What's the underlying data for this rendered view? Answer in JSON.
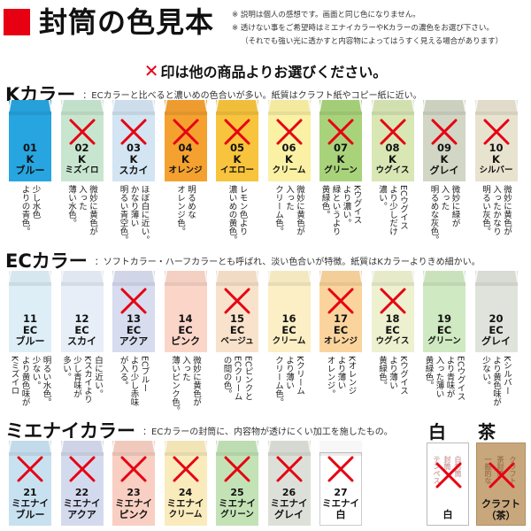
{
  "header": {
    "title": "封筒の色見本",
    "notes": [
      "※ 説明は個人の感想です。画面と同じ色になりません。",
      "※ 透けない事をご希望時はミエナイカラーやKカラーの濃色をお選び下さい。",
      "（それでも強い光に透かすと内容物によってはうすく見える場合があります）"
    ]
  },
  "hint": {
    "mark": "✕",
    "text": "印は他の商品よりお選びください。"
  },
  "colors": {
    "accent": "#e60012"
  },
  "sections": {
    "k": {
      "name": "Kカラー",
      "desc": "：ECカラーと比べると濃いめの色合いが多い。紙質はクラフト紙やコピー紙に近い。",
      "items": [
        {
          "code": "01",
          "prefix": "K",
          "label": "ブルー",
          "color": "#27a5e0",
          "crossed": false,
          "desc": [
            "少し水色",
            "よりの青色。"
          ]
        },
        {
          "code": "02",
          "prefix": "K",
          "label": "ミズイロ",
          "color": "#c8e6cf",
          "crossed": true,
          "desc": [
            "微妙に黄色が",
            "入った",
            "薄い水色。"
          ]
        },
        {
          "code": "03",
          "prefix": "K",
          "label": "スカイ",
          "color": "#d3e4f2",
          "crossed": true,
          "desc": [
            "ほぼ白に近い。",
            "かなり薄い",
            "明るい青空色。"
          ]
        },
        {
          "code": "04",
          "prefix": "K",
          "label": "オレンジ",
          "color": "#f5a130",
          "crossed": true,
          "desc": [
            "明るめな",
            "オレンジ色。"
          ]
        },
        {
          "code": "05",
          "prefix": "K",
          "label": "イエロー",
          "color": "#f8c43d",
          "crossed": true,
          "desc": [
            "レモン色より",
            "濃いめの黄色。"
          ]
        },
        {
          "code": "06",
          "prefix": "K",
          "label": "クリーム",
          "color": "#faf1a4",
          "crossed": true,
          "desc": [
            "微妙に黄色が",
            "入った",
            "クリーム色。"
          ]
        },
        {
          "code": "07",
          "prefix": "K",
          "label": "グリーン",
          "color": "#a9d37b",
          "crossed": true,
          "desc": [
            "Kウグイス",
            "より濃い。",
            "緑というより",
            "黄緑色。"
          ]
        },
        {
          "code": "08",
          "prefix": "K",
          "label": "ウグイス",
          "color": "#d8e7b4",
          "crossed": true,
          "desc": [
            "ECウグイス",
            "より少しだけ",
            "濃い。"
          ]
        },
        {
          "code": "09",
          "prefix": "K",
          "label": "グレイ",
          "color": "#d2d6c5",
          "crossed": true,
          "desc": [
            "微妙に緑が",
            "入った",
            "明るめな灰色。"
          ]
        },
        {
          "code": "10",
          "prefix": "K",
          "label": "シルバー",
          "color": "#e8e3cf",
          "crossed": true,
          "desc": [
            "微妙に黄色が",
            "入ったかなり",
            "明るい灰色。"
          ]
        }
      ]
    },
    "ec": {
      "name": "ECカラー",
      "desc": "：ソフトカラー・ハーフカラーとも呼ばれ、淡い色合いが特徴。紙質はKカラーよりきめ細かい。",
      "items": [
        {
          "code": "11",
          "prefix": "EC",
          "label": "ブルー",
          "color": "#ddeef6",
          "crossed": false,
          "desc": [
            "明るい水色。",
            "少ない。",
            "より黄色味が",
            "Kミズイロ"
          ]
        },
        {
          "code": "12",
          "prefix": "EC",
          "label": "スカイ",
          "color": "#e7eef7",
          "crossed": false,
          "desc": [
            "白に近い。",
            "Kスカイより",
            "少し青味が",
            "多い。"
          ]
        },
        {
          "code": "13",
          "prefix": "EC",
          "label": "アクア",
          "color": "#d7dcef",
          "crossed": true,
          "desc": [
            "ECブルー",
            "より少し赤味",
            "が入る。"
          ]
        },
        {
          "code": "14",
          "prefix": "EC",
          "label": "ピンク",
          "color": "#fbd6c8",
          "crossed": false,
          "desc": [
            "微妙に黄色が",
            "入った",
            "薄いピンク色。"
          ]
        },
        {
          "code": "15",
          "prefix": "EC",
          "label": "ベージュ",
          "color": "#f9e2cb",
          "crossed": true,
          "desc": [
            "ECピンクと",
            "ECクリーム",
            "の間の色。"
          ]
        },
        {
          "code": "16",
          "prefix": "EC",
          "label": "クリーム",
          "color": "#fcefc5",
          "crossed": false,
          "desc": [
            "Kクリーム",
            "より薄い",
            "クリーム色。"
          ]
        },
        {
          "code": "17",
          "prefix": "EC",
          "label": "オレンジ",
          "color": "#fbd49d",
          "crossed": true,
          "desc": [
            "Kオレンジ",
            "より薄い",
            "オレンジ。"
          ]
        },
        {
          "code": "18",
          "prefix": "EC",
          "label": "ウグイス",
          "color": "#eef1cf",
          "crossed": true,
          "desc": [
            "Kウグイス",
            "より薄い",
            "黄緑色。"
          ]
        },
        {
          "code": "19",
          "prefix": "EC",
          "label": "グリーン",
          "color": "#cfe9c2",
          "crossed": false,
          "desc": [
            "ECウグイス",
            "より青味が",
            "入った薄い",
            "黄緑色。"
          ]
        },
        {
          "code": "20",
          "prefix": "EC",
          "label": "グレイ",
          "color": "#e0e3db",
          "crossed": false,
          "desc": [
            "Kシルバー",
            "より黄色味が",
            "少ない。"
          ]
        }
      ]
    },
    "m": {
      "name": "ミエナイカラー",
      "desc": "：ECカラーの封筒に、内容物が透けにくい加工を施したもの。",
      "items": [
        {
          "code": "21",
          "prefix": "ミエナイ",
          "label": "ブルー",
          "color": "#c8e1f1",
          "crossed": true
        },
        {
          "code": "22",
          "prefix": "ミエナイ",
          "label": "アクア",
          "color": "#d4daee",
          "crossed": true
        },
        {
          "code": "23",
          "prefix": "ミエナイ",
          "label": "ピンク",
          "color": "#f8cfc2",
          "crossed": true
        },
        {
          "code": "24",
          "prefix": "ミエナイ",
          "label": "クリーム",
          "color": "#faebbc",
          "crossed": true
        },
        {
          "code": "25",
          "prefix": "ミエナイ",
          "label": "グリーン",
          "color": "#c3e3b6",
          "crossed": true
        },
        {
          "code": "26",
          "prefix": "ミエナイ",
          "label": "グレイ",
          "color": "#dde0d8",
          "crossed": true
        },
        {
          "code": "27",
          "prefix": "ミエナイ",
          "label": "白",
          "color": "#ffffff",
          "crossed": true
        }
      ]
    }
  },
  "extras": {
    "white": {
      "title": "白",
      "label": "白",
      "crossed": true,
      "stamp": [
        "テンペス",
        "封筒",
        "白封筒"
      ]
    },
    "kraft": {
      "title": "茶",
      "label": "クラフト（茶）",
      "label_parts": [
        "クラフト",
        "（茶）"
      ],
      "crossed": true,
      "color": "#c9a77c",
      "stamp": [
        "一般的な",
        "茶封筒",
        "クラフト"
      ]
    }
  }
}
